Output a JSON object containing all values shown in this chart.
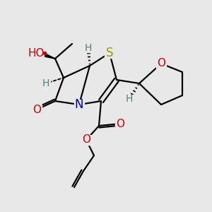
{
  "bg_color": "#e8e8e8",
  "figsize": [
    3.0,
    3.0
  ],
  "dpi": 100,
  "colors": {
    "black": "#000000",
    "S": "#999900",
    "N": "#0000cc",
    "O": "#cc0000",
    "H": "#4a8080",
    "red_dot": "#cc0000"
  }
}
